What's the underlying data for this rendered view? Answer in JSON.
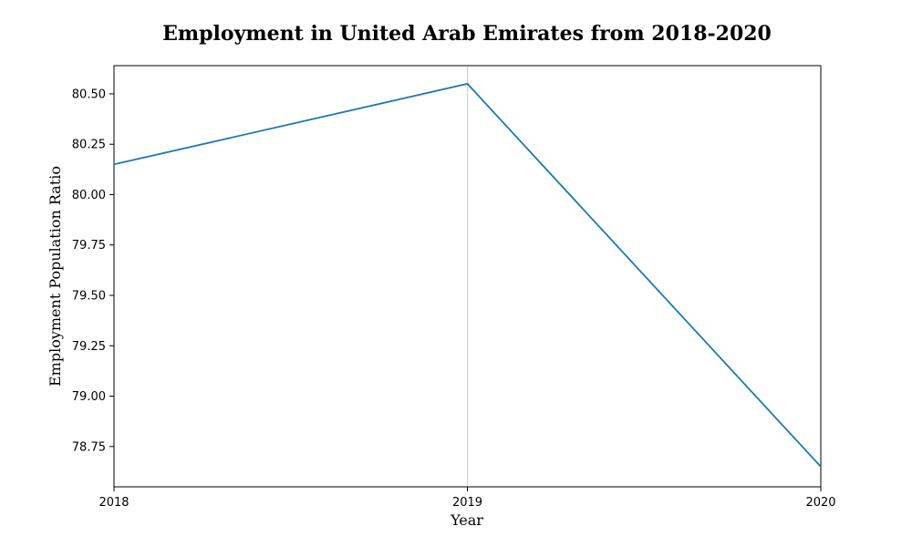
{
  "chart_data": {
    "type": "line",
    "title": "Employment in United Arab Emirates from 2018-2020",
    "xlabel": "Year",
    "ylabel": "Employment Population Ratio",
    "x": [
      "2018",
      "2019",
      "2020"
    ],
    "series": [
      {
        "values": [
          80.15,
          80.55,
          78.65
        ],
        "color": "#1f77b4"
      }
    ],
    "xlim": [
      2018,
      2020
    ],
    "ylim": [
      78.55,
      80.64
    ],
    "yticks": [
      "78.75",
      "79.00",
      "79.25",
      "79.50",
      "79.75",
      "80.00",
      "80.25",
      "80.50"
    ],
    "xticks": [
      "2018",
      "2019",
      "2020"
    ],
    "grid": "x-only",
    "legend": "none",
    "colors": {
      "line": "#1f77b4",
      "grid": "#cccccc",
      "axes": "#000000"
    }
  }
}
